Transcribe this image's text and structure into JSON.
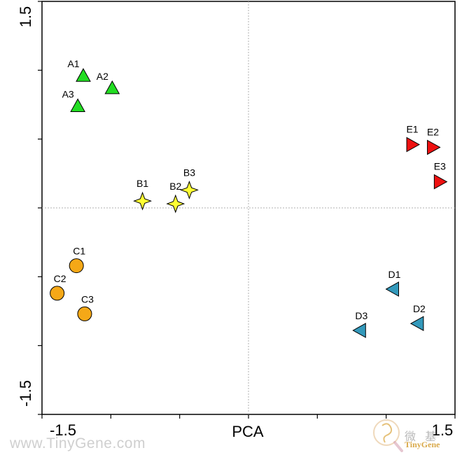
{
  "chart_data": {
    "type": "scatter",
    "xlabel": "PCA",
    "xlim": [
      -1.5,
      1.5
    ],
    "ylim": [
      -1.5,
      1.5
    ],
    "x_ticks": [
      -1.5,
      1.5
    ],
    "y_ticks": [
      1.5,
      -1.5
    ],
    "tick_label_text": {
      "x_min": "-1.5",
      "x_max": "1.5",
      "y_min": "-1.5",
      "y_max": "1.5"
    },
    "reference_lines": {
      "x": 0,
      "y": 0,
      "style": "dotted",
      "color": "#b0b0b0"
    },
    "grid": false,
    "series": [
      {
        "marker": "triangle-up",
        "color": "#22dd22",
        "points": [
          {
            "label": "A1",
            "x": -1.2,
            "y": 0.96
          },
          {
            "label": "A2",
            "x": -0.99,
            "y": 0.87
          },
          {
            "label": "A3",
            "x": -1.24,
            "y": 0.74
          }
        ]
      },
      {
        "marker": "star4",
        "color": "#ffff33",
        "points": [
          {
            "label": "B1",
            "x": -0.77,
            "y": 0.05
          },
          {
            "label": "B2",
            "x": -0.53,
            "y": 0.03
          },
          {
            "label": "B3",
            "x": -0.43,
            "y": 0.13
          }
        ]
      },
      {
        "marker": "circle",
        "color": "#f5a817",
        "points": [
          {
            "label": "C1",
            "x": -1.25,
            "y": -0.42
          },
          {
            "label": "C2",
            "x": -1.39,
            "y": -0.62
          },
          {
            "label": "C3",
            "x": -1.19,
            "y": -0.77
          }
        ]
      },
      {
        "marker": "triangle-left",
        "color": "#3399bb",
        "points": [
          {
            "label": "D1",
            "x": 1.05,
            "y": -0.59
          },
          {
            "label": "D2",
            "x": 1.23,
            "y": -0.84
          },
          {
            "label": "D3",
            "x": 0.81,
            "y": -0.89
          }
        ]
      },
      {
        "marker": "triangle-right",
        "color": "#ee1111",
        "points": [
          {
            "label": "E1",
            "x": 1.19,
            "y": 0.46
          },
          {
            "label": "E2",
            "x": 1.34,
            "y": 0.44
          },
          {
            "label": "E3",
            "x": 1.39,
            "y": 0.19
          }
        ]
      }
    ]
  },
  "watermark": {
    "url_text": "www.TinyGene.com",
    "brand_cn": "微 基",
    "brand_en": "TinyGene"
  }
}
